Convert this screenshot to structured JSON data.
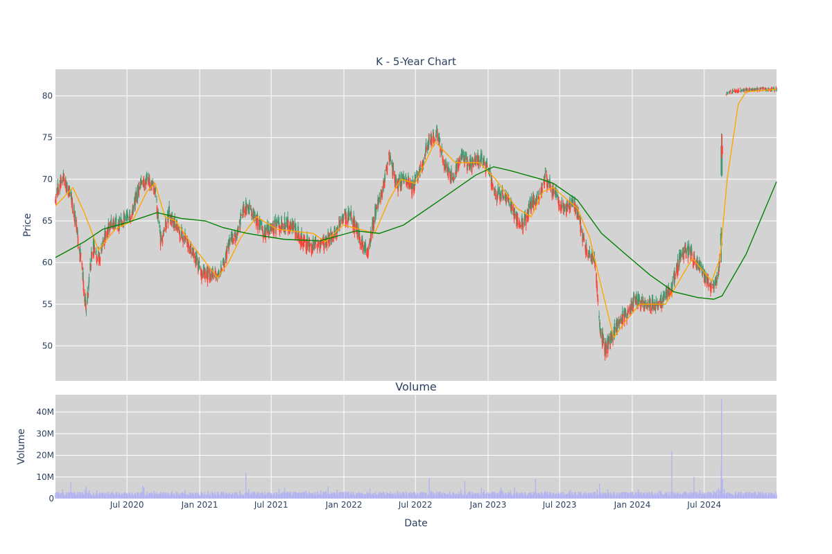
{
  "chart_data": [
    {
      "type": "candlestick",
      "title": "K - 5-Year Chart",
      "xlabel": "",
      "ylabel": "Price",
      "x_range": [
        "2020-01-02",
        "2024-12-31"
      ],
      "ylim": [
        45.8,
        83.2
      ],
      "y_ticks": [
        50,
        55,
        60,
        65,
        70,
        75,
        80
      ],
      "grid": true,
      "legend": "none",
      "colors": {
        "increasing": "#3d9970",
        "decreasing": "#ff4136",
        "ma_short": "#ffa500",
        "ma_long": "#008000",
        "plot_bg": "#d3d3d3",
        "grid": "#ffffff"
      },
      "price_path": [
        [
          "2020-01-02",
          67.5
        ],
        [
          "2020-01-20",
          70.5
        ],
        [
          "2020-02-10",
          68.0
        ],
        [
          "2020-02-25",
          64.0
        ],
        [
          "2020-03-10",
          59.0
        ],
        [
          "2020-03-20",
          54.0
        ],
        [
          "2020-04-05",
          62.0
        ],
        [
          "2020-04-20",
          60.5
        ],
        [
          "2020-05-15",
          64.5
        ],
        [
          "2020-06-10",
          64.5
        ],
        [
          "2020-07-10",
          65.5
        ],
        [
          "2020-08-05",
          69.5
        ],
        [
          "2020-08-25",
          70.0
        ],
        [
          "2020-09-10",
          68.5
        ],
        [
          "2020-09-25",
          62.5
        ],
        [
          "2020-10-15",
          66.0
        ],
        [
          "2020-11-05",
          64.0
        ],
        [
          "2020-12-01",
          62.5
        ],
        [
          "2021-01-05",
          59.0
        ],
        [
          "2021-01-25",
          58.5
        ],
        [
          "2021-02-20",
          58.5
        ],
        [
          "2021-03-15",
          62.0
        ],
        [
          "2021-04-05",
          63.5
        ],
        [
          "2021-04-25",
          67.0
        ],
        [
          "2021-05-20",
          65.5
        ],
        [
          "2021-06-15",
          63.5
        ],
        [
          "2021-07-15",
          64.5
        ],
        [
          "2021-08-15",
          64.5
        ],
        [
          "2021-09-15",
          63.0
        ],
        [
          "2021-10-15",
          62.0
        ],
        [
          "2021-11-15",
          62.5
        ],
        [
          "2021-12-10",
          63.5
        ],
        [
          "2021-12-30",
          65.5
        ],
        [
          "2022-01-20",
          65.5
        ],
        [
          "2022-02-10",
          63.0
        ],
        [
          "2022-03-01",
          61.0
        ],
        [
          "2022-03-20",
          65.5
        ],
        [
          "2022-04-10",
          69.0
        ],
        [
          "2022-04-25",
          73.0
        ],
        [
          "2022-05-15",
          69.5
        ],
        [
          "2022-06-10",
          70.0
        ],
        [
          "2022-06-25",
          69.0
        ],
        [
          "2022-07-15",
          71.5
        ],
        [
          "2022-08-05",
          74.5
        ],
        [
          "2022-08-25",
          75.5
        ],
        [
          "2022-09-15",
          71.5
        ],
        [
          "2022-10-05",
          70.0
        ],
        [
          "2022-10-25",
          73.0
        ],
        [
          "2022-11-15",
          71.5
        ],
        [
          "2022-12-05",
          72.5
        ],
        [
          "2022-12-30",
          71.5
        ],
        [
          "2023-01-20",
          68.0
        ],
        [
          "2023-02-15",
          68.0
        ],
        [
          "2023-03-10",
          65.5
        ],
        [
          "2023-03-30",
          64.5
        ],
        [
          "2023-04-20",
          67.0
        ],
        [
          "2023-05-10",
          68.0
        ],
        [
          "2023-05-25",
          70.5
        ],
        [
          "2023-06-15",
          68.5
        ],
        [
          "2023-07-10",
          66.5
        ],
        [
          "2023-08-10",
          67.0
        ],
        [
          "2023-08-25",
          64.0
        ],
        [
          "2023-09-10",
          61.0
        ],
        [
          "2023-09-30",
          60.0
        ],
        [
          "2023-10-10",
          52.0
        ],
        [
          "2023-10-25",
          49.5
        ],
        [
          "2023-11-10",
          51.0
        ],
        [
          "2023-12-01",
          53.0
        ],
        [
          "2023-12-20",
          54.0
        ],
        [
          "2024-01-10",
          55.5
        ],
        [
          "2024-02-01",
          55.0
        ],
        [
          "2024-02-25",
          54.5
        ],
        [
          "2024-03-20",
          55.5
        ],
        [
          "2024-04-10",
          57.0
        ],
        [
          "2024-05-01",
          60.5
        ],
        [
          "2024-05-20",
          61.5
        ],
        [
          "2024-06-10",
          60.0
        ],
        [
          "2024-07-01",
          58.5
        ],
        [
          "2024-07-20",
          57.0
        ],
        [
          "2024-08-05",
          58.0
        ],
        [
          "2024-08-10",
          61.5
        ],
        [
          "2024-08-14",
          73.5
        ],
        [
          "2024-08-20",
          75.0
        ],
        [
          "2024-08-26",
          80.2
        ],
        [
          "2024-09-15",
          80.6
        ],
        [
          "2024-10-15",
          80.7
        ],
        [
          "2024-11-15",
          80.8
        ],
        [
          "2024-12-31",
          80.8
        ]
      ],
      "ma_short_path": [
        [
          "2020-01-02",
          66.8
        ],
        [
          "2020-02-15",
          69.0
        ],
        [
          "2020-03-15",
          66.0
        ],
        [
          "2020-04-20",
          61.5
        ],
        [
          "2020-06-01",
          64.0
        ],
        [
          "2020-07-15",
          65.0
        ],
        [
          "2020-08-20",
          68.5
        ],
        [
          "2020-09-10",
          69.5
        ],
        [
          "2020-10-05",
          65.5
        ],
        [
          "2020-11-01",
          65.0
        ],
        [
          "2020-12-15",
          62.0
        ],
        [
          "2021-02-15",
          58.2
        ],
        [
          "2021-03-15",
          60.0
        ],
        [
          "2021-04-15",
          63.0
        ],
        [
          "2021-05-25",
          65.5
        ],
        [
          "2021-07-15",
          64.0
        ],
        [
          "2021-10-15",
          63.5
        ],
        [
          "2021-11-15",
          62.5
        ],
        [
          "2021-12-30",
          64.5
        ],
        [
          "2022-02-10",
          64.0
        ],
        [
          "2022-03-20",
          63.5
        ],
        [
          "2022-04-25",
          67.5
        ],
        [
          "2022-05-25",
          70.0
        ],
        [
          "2022-06-30",
          69.5
        ],
        [
          "2022-08-20",
          74.5
        ],
        [
          "2022-10-10",
          72.0
        ],
        [
          "2022-12-10",
          72.0
        ],
        [
          "2023-01-20",
          70.0
        ],
        [
          "2023-03-15",
          66.5
        ],
        [
          "2023-04-20",
          65.5
        ],
        [
          "2023-05-20",
          68.5
        ],
        [
          "2023-06-15",
          69.0
        ],
        [
          "2023-08-15",
          66.5
        ],
        [
          "2023-09-15",
          63.0
        ],
        [
          "2023-10-15",
          57.0
        ],
        [
          "2023-11-15",
          51.0
        ],
        [
          "2023-12-15",
          53.0
        ],
        [
          "2024-01-20",
          55.0
        ],
        [
          "2024-03-25",
          55.0
        ],
        [
          "2024-04-25",
          57.5
        ],
        [
          "2024-06-01",
          60.5
        ],
        [
          "2024-07-20",
          57.8
        ],
        [
          "2024-08-10",
          60.5
        ],
        [
          "2024-08-28",
          70.0
        ],
        [
          "2024-09-25",
          79.0
        ],
        [
          "2024-10-15",
          80.5
        ],
        [
          "2024-12-31",
          80.8
        ]
      ],
      "ma_long_path": [
        [
          "2020-01-02",
          60.6
        ],
        [
          "2020-03-15",
          62.5
        ],
        [
          "2020-05-01",
          64.0
        ],
        [
          "2020-07-01",
          64.8
        ],
        [
          "2020-09-15",
          66.0
        ],
        [
          "2020-11-15",
          65.3
        ],
        [
          "2021-01-15",
          65.0
        ],
        [
          "2021-03-01",
          64.2
        ],
        [
          "2021-05-01",
          63.5
        ],
        [
          "2021-08-01",
          62.8
        ],
        [
          "2021-11-01",
          62.6
        ],
        [
          "2022-02-01",
          63.8
        ],
        [
          "2022-04-01",
          63.5
        ],
        [
          "2022-06-01",
          64.5
        ],
        [
          "2022-09-01",
          67.5
        ],
        [
          "2022-12-01",
          70.5
        ],
        [
          "2023-01-15",
          71.5
        ],
        [
          "2023-03-01",
          71.0
        ],
        [
          "2023-05-15",
          70.0
        ],
        [
          "2023-06-15",
          69.5
        ],
        [
          "2023-08-15",
          67.5
        ],
        [
          "2023-10-15",
          63.5
        ],
        [
          "2023-12-15",
          61.0
        ],
        [
          "2024-02-15",
          58.5
        ],
        [
          "2024-04-15",
          56.5
        ],
        [
          "2024-06-15",
          55.8
        ],
        [
          "2024-07-25",
          55.6
        ],
        [
          "2024-08-15",
          56.0
        ],
        [
          "2024-10-15",
          61.0
        ],
        [
          "2024-12-31",
          69.7
        ]
      ],
      "big_candles": [
        [
          "2024-08-13",
          62.0,
          64.2,
          60.0,
          63.5
        ],
        [
          "2024-08-14",
          70.5,
          75.5,
          70.3,
          74.0
        ],
        [
          "2024-08-15",
          74.0,
          75.4,
          72.5,
          73.0
        ]
      ]
    },
    {
      "type": "bar",
      "title": "Volume",
      "xlabel": "Date",
      "ylabel": "Volume",
      "x_range": [
        "2020-01-02",
        "2024-12-31"
      ],
      "ylim": [
        0,
        48000000
      ],
      "y_ticks": [
        0,
        10000000,
        20000000,
        30000000,
        40000000
      ],
      "y_tick_labels": [
        "0",
        "10M",
        "20M",
        "30M",
        "40M"
      ],
      "x_ticks": [
        "2020-07-01",
        "2021-01-01",
        "2021-07-01",
        "2022-01-01",
        "2022-07-01",
        "2023-01-01",
        "2023-07-01",
        "2024-01-01",
        "2024-07-01"
      ],
      "x_tick_labels": [
        "Jul 2020",
        "Jan 2021",
        "Jul 2021",
        "Jan 2022",
        "Jul 2022",
        "Jan 2023",
        "Jul 2023",
        "Jan 2024",
        "Jul 2024"
      ],
      "colors": {
        "bar": "#b3b3f2"
      },
      "spikes": [
        [
          "2020-02-10",
          7500000
        ],
        [
          "2020-03-20",
          5500000
        ],
        [
          "2020-08-10",
          6000000
        ],
        [
          "2021-04-28",
          12000000
        ],
        [
          "2022-08-05",
          9500000
        ],
        [
          "2022-11-03",
          8000000
        ],
        [
          "2023-05-01",
          9000000
        ],
        [
          "2023-10-10",
          7000000
        ],
        [
          "2024-04-10",
          22000000
        ],
        [
          "2024-06-05",
          10000000
        ],
        [
          "2024-08-13",
          15000000
        ],
        [
          "2024-08-14",
          46000000
        ],
        [
          "2024-08-16",
          9000000
        ]
      ]
    }
  ]
}
